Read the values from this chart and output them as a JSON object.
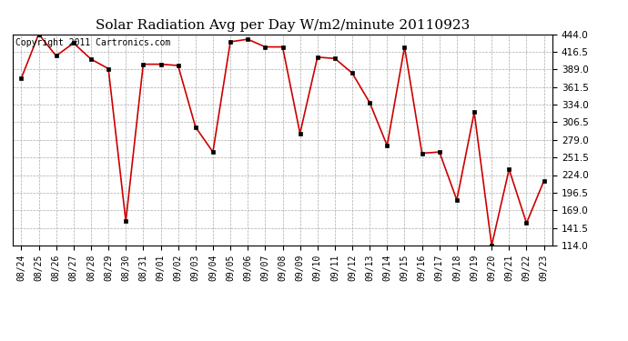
{
  "title": "Solar Radiation Avg per Day W/m2/minute 20110923",
  "copyright": "Copyright 2011 Cartronics.com",
  "dates": [
    "08/24",
    "08/25",
    "08/26",
    "08/27",
    "08/28",
    "08/29",
    "08/30",
    "08/31",
    "09/01",
    "09/02",
    "09/03",
    "09/04",
    "09/05",
    "09/06",
    "09/07",
    "09/08",
    "09/09",
    "09/10",
    "09/11",
    "09/12",
    "09/13",
    "09/14",
    "09/15",
    "09/16",
    "09/17",
    "09/18",
    "09/19",
    "09/20",
    "09/21",
    "09/22",
    "09/23"
  ],
  "values": [
    375,
    444,
    410,
    430,
    405,
    390,
    152,
    397,
    397,
    395,
    299,
    260,
    432,
    436,
    424,
    424,
    289,
    408,
    406,
    383,
    337,
    270,
    424,
    258,
    260,
    185,
    322,
    114,
    233,
    149,
    215
  ],
  "line_color": "#cc0000",
  "marker_color": "#000000",
  "bg_color": "#ffffff",
  "grid_color": "#aaaaaa",
  "ylim": [
    114.0,
    444.0
  ],
  "yticks": [
    114.0,
    141.5,
    169.0,
    196.5,
    224.0,
    251.5,
    279.0,
    306.5,
    334.0,
    361.5,
    389.0,
    416.5,
    444.0
  ],
  "title_fontsize": 11,
  "copyright_fontsize": 7,
  "tick_fontsize": 7.5,
  "xlabel_fontsize": 7
}
